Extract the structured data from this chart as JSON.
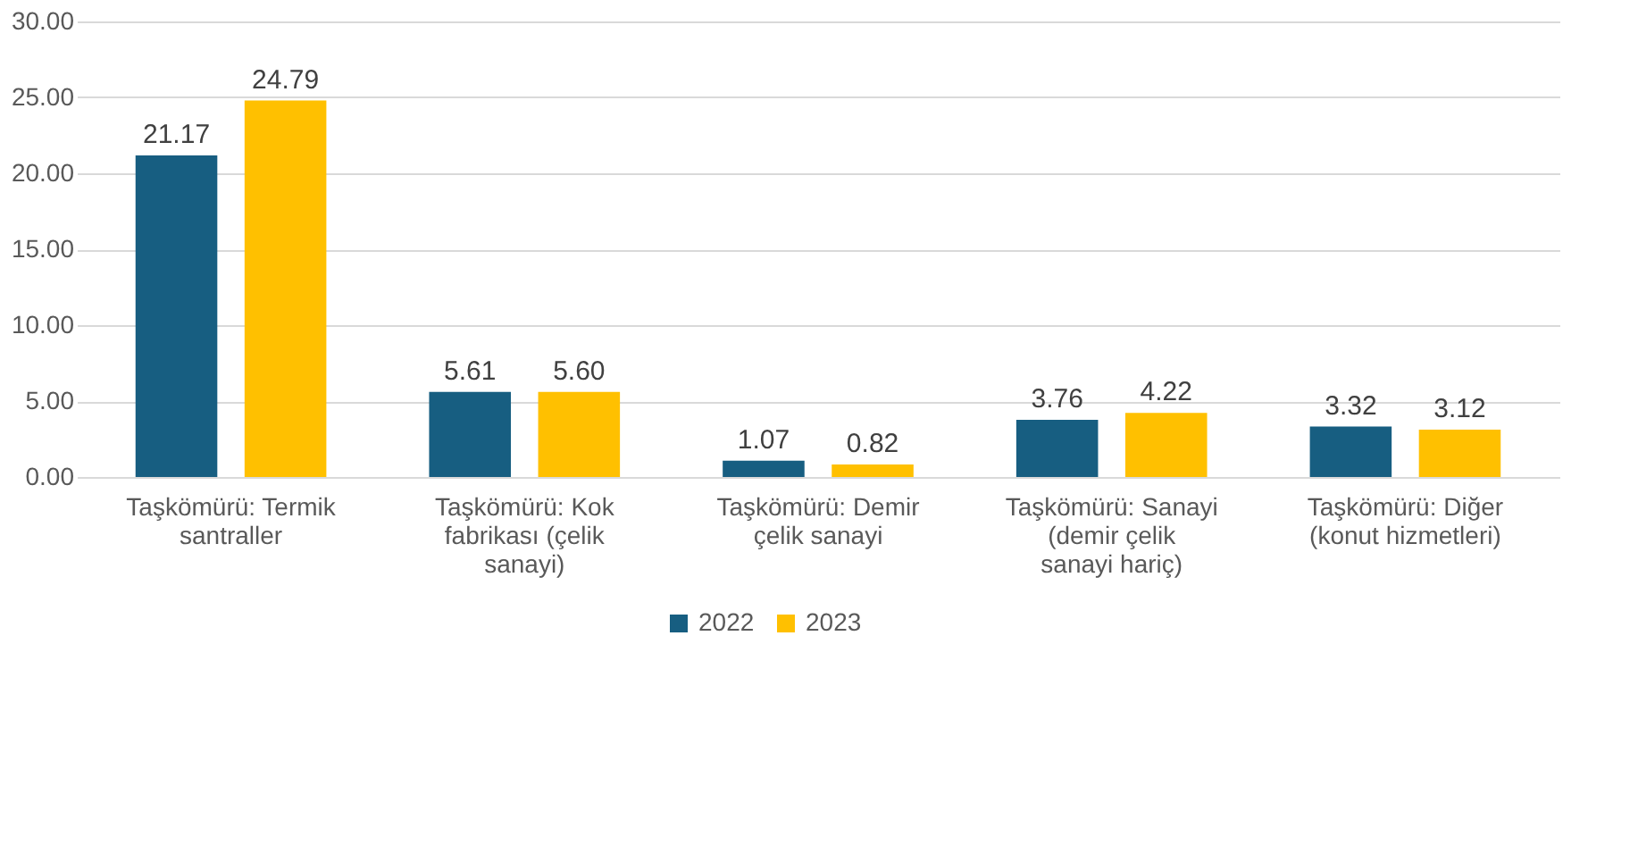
{
  "chart_data": {
    "type": "bar",
    "categories": [
      "Taşkömürü: Termik santraller",
      "Taşkömürü: Kok fabrikası (çelik sanayi)",
      "Taşkömürü: Demir çelik sanayi",
      "Taşkömürü: Sanayi (demir çelik sanayi hariç)",
      "Taşkömürü: Diğer (konut hizmetleri)"
    ],
    "series": [
      {
        "name": "2022",
        "color": "#175e81",
        "values": [
          21.17,
          5.61,
          1.07,
          3.76,
          3.32
        ],
        "value_labels": [
          "21.17",
          "5.61",
          "1.07",
          "3.76",
          "3.32"
        ]
      },
      {
        "name": "2023",
        "color": "#ffc000",
        "values": [
          24.79,
          5.6,
          0.82,
          4.22,
          3.12
        ],
        "value_labels": [
          "24.79",
          "5.60",
          "0.82",
          "4.22",
          "3.12"
        ]
      }
    ],
    "ylim": [
      0,
      30
    ],
    "yticks": [
      {
        "value": 0,
        "label": "0.00"
      },
      {
        "value": 5,
        "label": "5.00"
      },
      {
        "value": 10,
        "label": "10.00"
      },
      {
        "value": 15,
        "label": "15.00"
      },
      {
        "value": 20,
        "label": "20.00"
      },
      {
        "value": 25,
        "label": "25.00"
      },
      {
        "value": 30,
        "label": "30.00"
      }
    ],
    "data_labels": true,
    "grid": "y",
    "legend": "bottom"
  }
}
